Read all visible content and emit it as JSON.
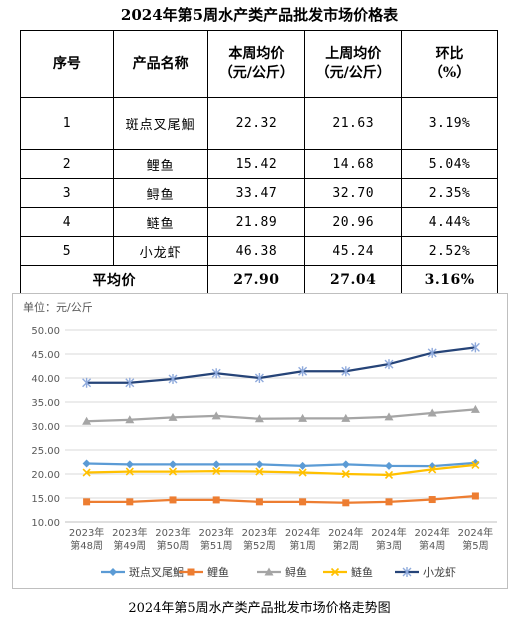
{
  "document": {
    "title": "2024年第5周水产类产品批发市场价格表",
    "caption": "2024年第5周水产类产品批发市场价格走势图"
  },
  "table": {
    "headers": {
      "no": "序号",
      "name": "产品名称",
      "this_week_1": "本周均价",
      "this_week_2": "（元/公斤）",
      "last_week_1": "上周均价",
      "last_week_2": "（元/公斤）",
      "change_1": "环比",
      "change_2": "（%）"
    },
    "rows": [
      {
        "no": "1",
        "name": "斑点叉尾鮰",
        "this_week": "22.32",
        "last_week": "21.63",
        "change": "3.19%"
      },
      {
        "no": "2",
        "name": "鲤鱼",
        "this_week": "15.42",
        "last_week": "14.68",
        "change": "5.04%"
      },
      {
        "no": "3",
        "name": "鲟鱼",
        "this_week": "33.47",
        "last_week": "32.70",
        "change": "2.35%"
      },
      {
        "no": "4",
        "name": "鲢鱼",
        "this_week": "21.89",
        "last_week": "20.96",
        "change": "4.44%"
      },
      {
        "no": "5",
        "name": "小龙虾",
        "this_week": "46.38",
        "last_week": "45.24",
        "change": "2.52%"
      }
    ],
    "average": {
      "label": "平均价",
      "this_week": "27.90",
      "last_week": "27.04",
      "change": "3.16%"
    }
  },
  "chart_data": {
    "type": "line",
    "unit_label": "单位：元/公斤",
    "ylim": [
      10,
      50
    ],
    "yticks": [
      "10.00",
      "15.00",
      "20.00",
      "25.00",
      "30.00",
      "35.00",
      "40.00",
      "45.00",
      "50.00"
    ],
    "categories": [
      [
        "2023年",
        "第48周"
      ],
      [
        "2023年",
        "第49周"
      ],
      [
        "2023年",
        "第50周"
      ],
      [
        "2023年",
        "第51周"
      ],
      [
        "2023年",
        "第52周"
      ],
      [
        "2024年",
        "第1周"
      ],
      [
        "2024年",
        "第2周"
      ],
      [
        "2024年",
        "第3周"
      ],
      [
        "2024年",
        "第4周"
      ],
      [
        "2024年",
        "第5周"
      ]
    ],
    "grid": true,
    "legend": "bottom",
    "series": [
      {
        "name": "斑点叉尾鮰",
        "color": "#5b9bd5",
        "marker": "diamond",
        "values": [
          22.2,
          22.0,
          22.0,
          22.0,
          22.0,
          21.7,
          22.0,
          21.7,
          21.63,
          22.32
        ]
      },
      {
        "name": "鲤鱼",
        "color": "#ed7d31",
        "marker": "square",
        "values": [
          14.2,
          14.2,
          14.6,
          14.6,
          14.2,
          14.2,
          14.0,
          14.2,
          14.68,
          15.42
        ]
      },
      {
        "name": "鲟鱼",
        "color": "#a5a5a5",
        "marker": "triangle",
        "values": [
          31.0,
          31.3,
          31.8,
          32.1,
          31.5,
          31.6,
          31.6,
          31.9,
          32.7,
          33.47
        ]
      },
      {
        "name": "鲢鱼",
        "color": "#ffc000",
        "marker": "x",
        "values": [
          20.3,
          20.5,
          20.5,
          20.6,
          20.5,
          20.3,
          20.0,
          19.8,
          20.96,
          21.89
        ]
      },
      {
        "name": "小龙虾",
        "color": "#264478",
        "marker": "star",
        "values": [
          39.0,
          39.0,
          39.8,
          41.0,
          40.0,
          41.4,
          41.4,
          42.9,
          45.24,
          46.38
        ]
      }
    ]
  }
}
